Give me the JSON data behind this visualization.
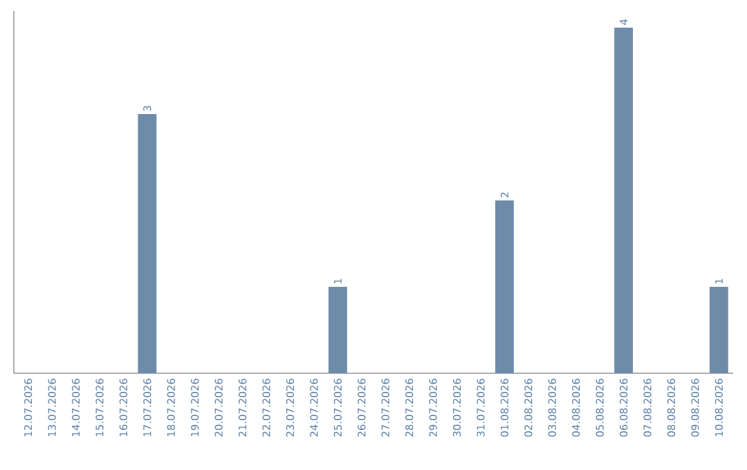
{
  "chart_data": {
    "type": "bar",
    "color": "#6e8caa",
    "categories": [
      "12.07.2026",
      "13.07.2026",
      "14.07.2026",
      "15.07.2026",
      "16.07.2026",
      "17.07.2026",
      "18.07.2026",
      "19.07.2026",
      "20.07.2026",
      "21.07.2026",
      "22.07.2026",
      "23.07.2026",
      "24.07.2026",
      "25.07.2026",
      "26.07.2026",
      "27.07.2026",
      "28.07.2026",
      "29.07.2026",
      "30.07.2026",
      "31.07.2026",
      "01.08.2026",
      "02.08.2026",
      "03.08.2026",
      "04.08.2026",
      "05.08.2026",
      "06.08.2026",
      "07.08.2026",
      "08.08.2026",
      "09.08.2026",
      "10.08.2026"
    ],
    "values": [
      0,
      0,
      0,
      0,
      0,
      3,
      0,
      0,
      0,
      0,
      0,
      0,
      0,
      1,
      0,
      0,
      0,
      0,
      0,
      0,
      2,
      0,
      0,
      0,
      0,
      4,
      0,
      0,
      0,
      1
    ],
    "value_labels": [
      null,
      null,
      null,
      null,
      null,
      "3",
      null,
      null,
      null,
      null,
      null,
      null,
      null,
      "1",
      null,
      null,
      null,
      null,
      null,
      null,
      "2",
      null,
      null,
      null,
      null,
      "4",
      null,
      null,
      null,
      "1"
    ]
  }
}
